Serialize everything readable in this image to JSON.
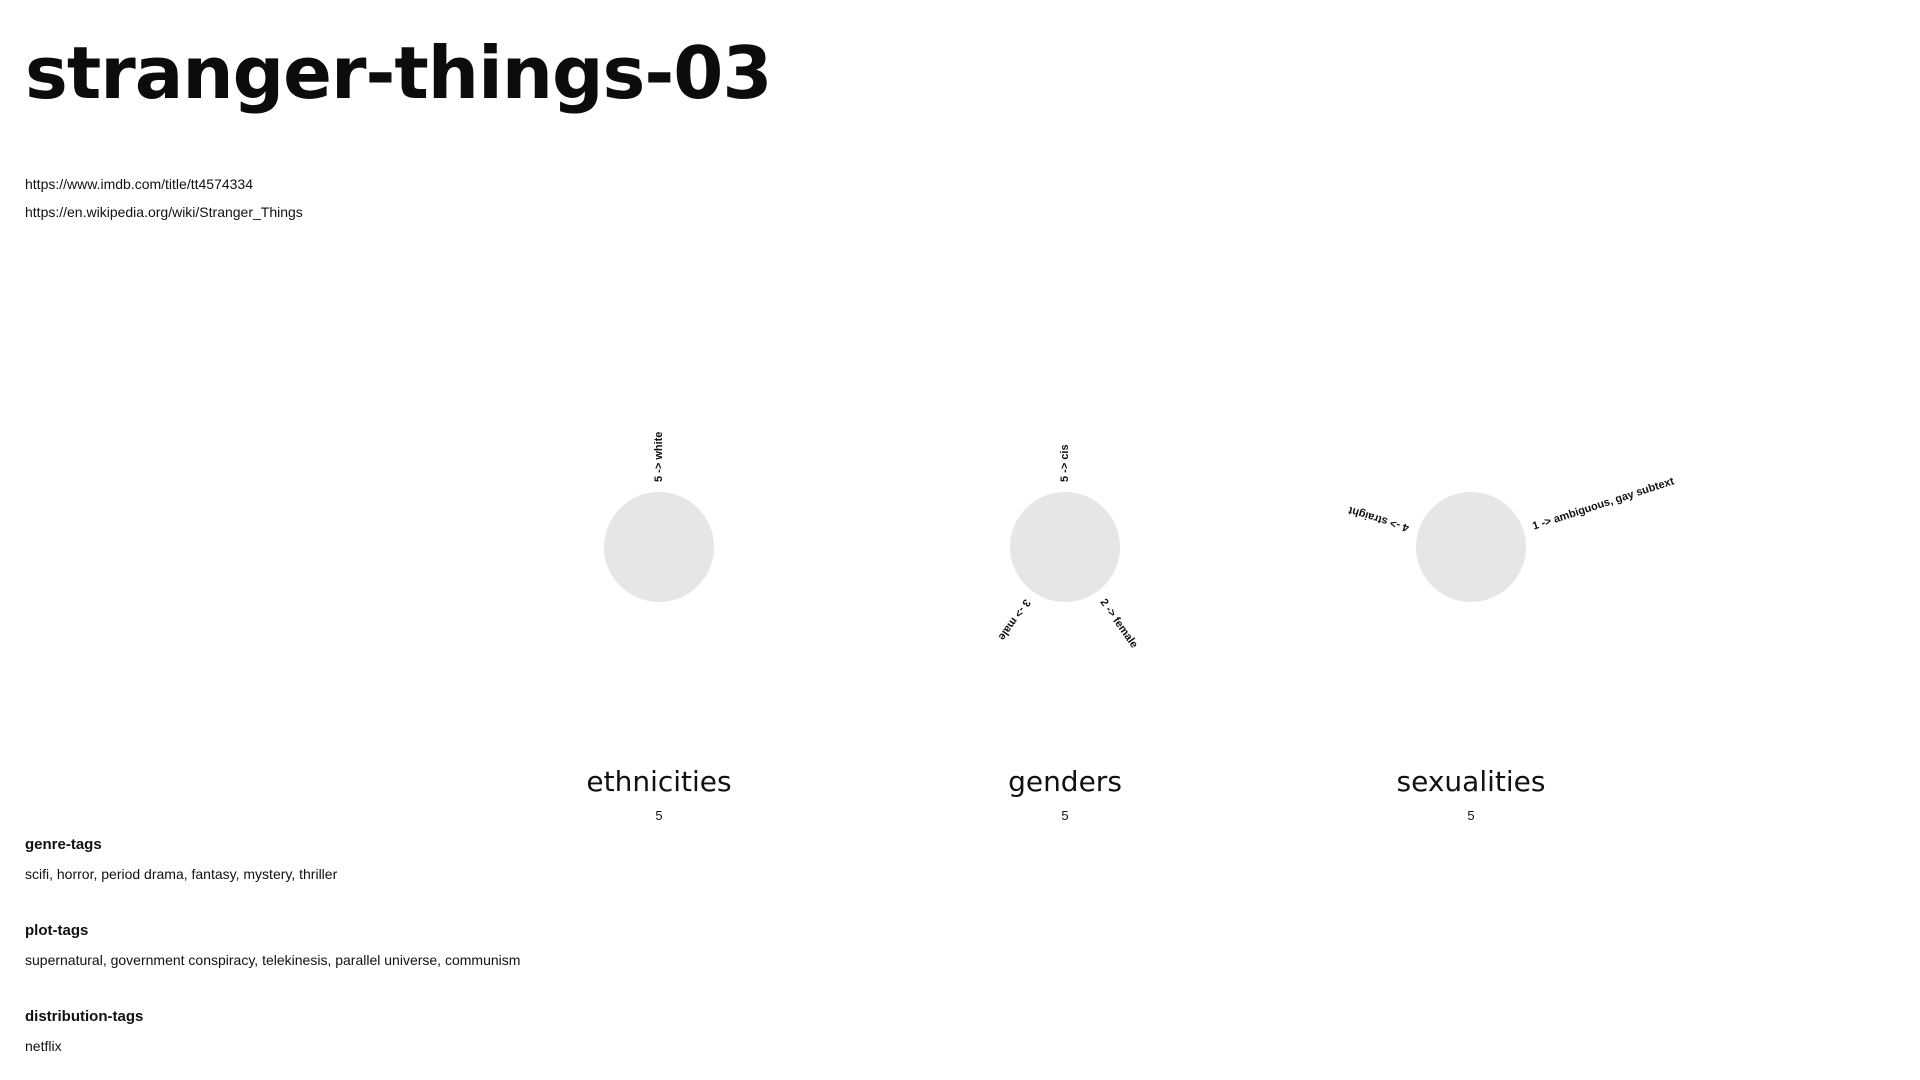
{
  "page": {
    "title": "stranger-things-03",
    "links": [
      "https://www.imdb.com/title/tt4574334",
      "https://en.wikipedia.org/wiki/Stranger_Things"
    ]
  },
  "diagrams": [
    {
      "name": "ethnicities",
      "count": "5",
      "categories": [
        {
          "label": "5 ->  white",
          "angle_deg": 0
        }
      ]
    },
    {
      "name": "genders",
      "count": "5",
      "categories": [
        {
          "label": "5 ->  cis",
          "angle_deg": 0
        },
        {
          "label": "3 ->  male",
          "angle_deg": 215
        },
        {
          "label": "2 ->  female",
          "angle_deg": 145
        }
      ]
    },
    {
      "name": "sexualities",
      "count": "5",
      "categories": [
        {
          "label": "4 ->  straight",
          "angle_deg": 287
        },
        {
          "label": "1 ->  ambiguous, gay subtext",
          "angle_deg": 72
        }
      ]
    }
  ],
  "tags": [
    {
      "heading": "genre-tags",
      "values": "scifi, horror, period drama, fantasy, mystery, thriller"
    },
    {
      "heading": "plot-tags",
      "values": "supernatural, government conspiracy, telekinesis, parallel universe, communism"
    },
    {
      "heading": "distribution-tags",
      "values": "netflix"
    }
  ],
  "colors": {
    "circle_fill": "#e6e6e6",
    "text": "#111111",
    "background": "#ffffff"
  }
}
